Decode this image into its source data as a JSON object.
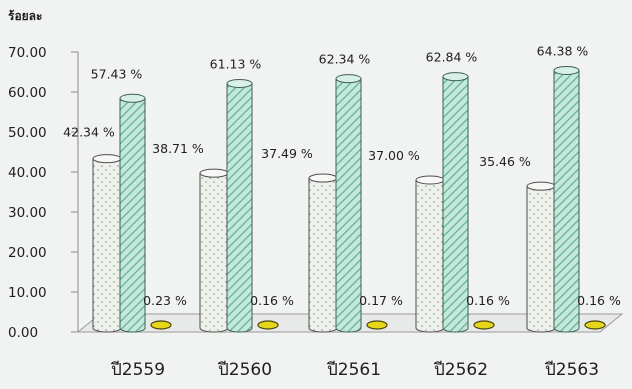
{
  "chart_data": {
    "type": "bar",
    "ylabel": "ร้อยละ",
    "ylim": [
      0,
      70
    ],
    "yticks": [
      "0.00",
      "10.00",
      "20.00",
      "30.00",
      "40.00",
      "50.00",
      "60.00",
      "70.00"
    ],
    "categories": [
      "ปี2559",
      "ปี2560",
      "ปี2561",
      "ปี2562",
      "ปี2563"
    ],
    "series": [
      {
        "values": [
          42.34,
          38.71,
          37.49,
          37.0,
          35.46
        ],
        "labels": [
          "42.34 %",
          "38.71 %",
          "37.49 %",
          "37.00 %",
          "35.46 %"
        ],
        "color": "#ecefe8"
      },
      {
        "values": [
          57.43,
          61.13,
          62.34,
          62.84,
          64.38
        ],
        "labels": [
          "57.43 %",
          "61.13 %",
          "62.34 %",
          "62.84 %",
          "64.38 %"
        ],
        "color": "#a9d9cb"
      },
      {
        "values": [
          0.23,
          0.16,
          0.17,
          0.16,
          0.16
        ],
        "labels": [
          "0.23 %",
          "0.16 %",
          "0.17 %",
          "0.16 %",
          "0.16 %"
        ],
        "color": "#e6d818"
      }
    ],
    "grid": false,
    "legend": "none"
  }
}
